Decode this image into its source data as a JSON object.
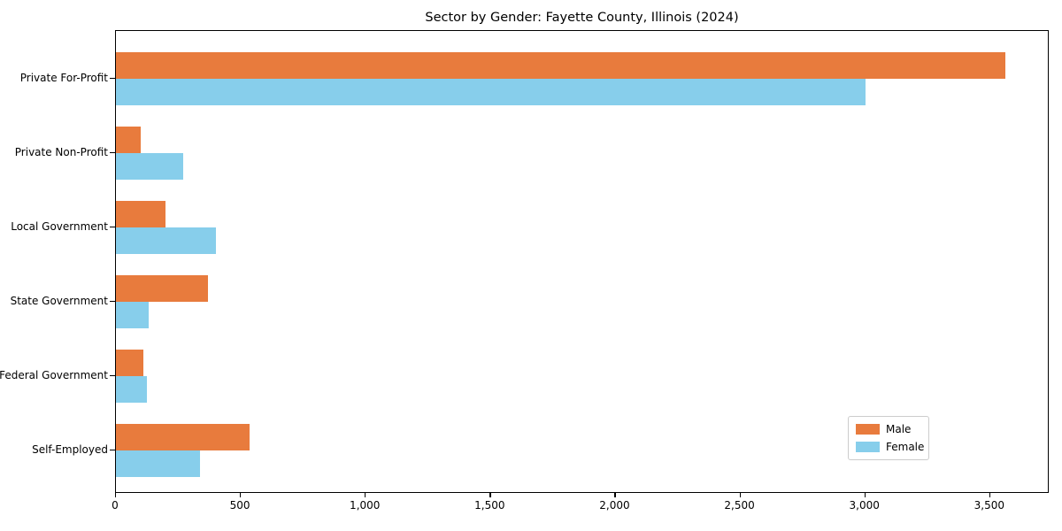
{
  "chart_data": {
    "type": "bar",
    "orientation": "horizontal",
    "title": "Sector by Gender: Fayette County, Illinois (2024)",
    "categories": [
      "Private For-Profit",
      "Private Non-Profit",
      "Local Government",
      "State Government",
      "Federal Government",
      "Self-Employed"
    ],
    "series": [
      {
        "name": "Male",
        "color": "#E87B3D",
        "values": [
          3560,
          100,
          200,
          370,
          110,
          535
        ]
      },
      {
        "name": "Female",
        "color": "#87CEEB",
        "values": [
          3000,
          270,
          400,
          130,
          125,
          335
        ]
      }
    ],
    "xlabel": "",
    "ylabel": "",
    "xlim": [
      0,
      3738
    ],
    "xticks": [
      0,
      500,
      1000,
      1500,
      2000,
      2500,
      3000,
      3500
    ],
    "xtick_labels": [
      "0",
      "500",
      "1,000",
      "1,500",
      "2,000",
      "2,500",
      "3,000",
      "3,500"
    ],
    "grid": "off",
    "legend_position": "lower right",
    "background_color": "#ffffff",
    "axis_color": "#000000",
    "legend_border_color": "#cccccc"
  }
}
